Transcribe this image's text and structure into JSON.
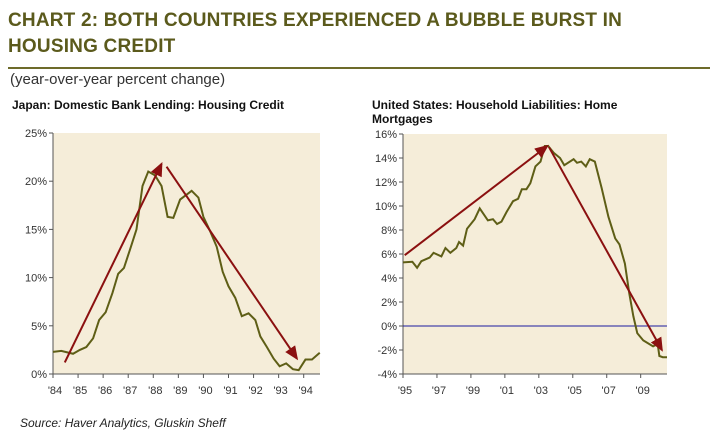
{
  "header": {
    "title": "CHART 2: BOTH COUNTRIES EXPERIENCED A BUBBLE BURST IN HOUSING CREDIT",
    "subtitle": "(year-over-year percent change)"
  },
  "source": "Source: Haver Analytics, Gluskin Sheff",
  "colors": {
    "line": "#5e5e16",
    "arrow": "#8b1010",
    "plot_bg": "#f5edd9",
    "zero_line": "#1a1aa0"
  },
  "chart_data": [
    {
      "type": "line",
      "title": "Japan: Domestic Bank Lending: Housing Credit",
      "ylim": [
        0,
        25
      ],
      "xlim": [
        1984,
        1994.65
      ],
      "yticks": [
        0,
        5,
        10,
        15,
        20,
        25
      ],
      "ytick_labels": [
        "0%",
        "5%",
        "10%",
        "15%",
        "20%",
        "25%"
      ],
      "xticks": [
        1984,
        1985,
        1986,
        1987,
        1988,
        1989,
        1990,
        1991,
        1992,
        1993,
        1994
      ],
      "xtick_labels": [
        "'84",
        "'85",
        "'86",
        "'87",
        "'88",
        "'89",
        "'90",
        "'91",
        "'92",
        "'93",
        "'94"
      ],
      "series": [
        {
          "name": "Housing Credit",
          "x": [
            1984,
            1984.33,
            1984.8,
            1985.07,
            1985.33,
            1985.6,
            1985.84,
            1986.1,
            1986.37,
            1986.6,
            1986.83,
            1987.07,
            1987.33,
            1987.57,
            1987.8,
            1988.07,
            1988.33,
            1988.57,
            1988.8,
            1989.07,
            1989.53,
            1989.8,
            1990,
            1990.27,
            1990.53,
            1990.77,
            1991,
            1991.27,
            1991.53,
            1991.8,
            1992.07,
            1992.27,
            1992.53,
            1992.8,
            1993.04,
            1993.3,
            1993.57,
            1993.8,
            1994.07,
            1994.33,
            1994.64
          ],
          "y": [
            2.3,
            2.4,
            2.1,
            2.5,
            2.8,
            3.7,
            5.6,
            6.4,
            8.4,
            10.4,
            11,
            12.9,
            15,
            19.5,
            21,
            20.6,
            19.5,
            16.3,
            16.2,
            18.1,
            19,
            18.3,
            16.3,
            14.8,
            13.2,
            10.6,
            9.1,
            7.9,
            6,
            6.3,
            5.6,
            3.9,
            2.8,
            1.6,
            0.8,
            1.1,
            0.5,
            0.4,
            1.5,
            1.5,
            2.2
          ]
        }
      ],
      "arrows": [
        {
          "from": [
            1984.47,
            1.2
          ],
          "to": [
            1988.33,
            21.8
          ]
        },
        {
          "from": [
            1988.53,
            21.5
          ],
          "to": [
            1993.73,
            1.6
          ]
        }
      ]
    },
    {
      "type": "line",
      "title": "United States: Household Liabilities: Home Mortgages",
      "ylim": [
        -4,
        16
      ],
      "xlim": [
        1995,
        2010.55
      ],
      "yticks": [
        -4,
        -2,
        0,
        2,
        4,
        6,
        8,
        10,
        12,
        14,
        16
      ],
      "ytick_labels": [
        "-4%",
        "-2%",
        "0%",
        "2%",
        "4%",
        "6%",
        "8%",
        "10%",
        "12%",
        "14%",
        "16%"
      ],
      "xticks": [
        1995,
        1997,
        1999,
        2001,
        2003,
        2005,
        2007,
        2009
      ],
      "xtick_labels": [
        "'95",
        "'97",
        "'99",
        "'01",
        "'03",
        "'05",
        "'07",
        "'09"
      ],
      "series": [
        {
          "name": "Home Mortgages",
          "x": [
            1995,
            1995.55,
            1995.83,
            1996.08,
            1996.57,
            1996.8,
            1997.26,
            1997.5,
            1997.79,
            1998.14,
            1998.3,
            1998.54,
            1998.77,
            1999.22,
            1999.52,
            2000,
            2000.3,
            2000.54,
            2000.8,
            2001.1,
            2001.48,
            2001.78,
            2002,
            2002.27,
            2002.5,
            2002.8,
            2003.1,
            2003.35,
            2003.55,
            2003.9,
            2004.25,
            2004.5,
            2005.05,
            2005.25,
            2005.5,
            2005.77,
            2006,
            2006.3,
            2006.7,
            2007.1,
            2007.5,
            2007.75,
            2008.07,
            2008.33,
            2008.57,
            2008.8,
            2009.15,
            2009.73,
            2010,
            2010.1,
            2010.3,
            2010.55
          ],
          "y": [
            5.3,
            5.35,
            4.85,
            5.4,
            5.7,
            6.1,
            5.8,
            6.5,
            6.1,
            6.5,
            7.0,
            6.7,
            8.1,
            8.9,
            9.8,
            8.8,
            8.9,
            8.5,
            8.7,
            9.5,
            10.4,
            10.6,
            11.4,
            11.4,
            11.9,
            13.3,
            13.7,
            15,
            15.0,
            14.4,
            14,
            13.4,
            13.9,
            13.6,
            13.7,
            13.3,
            13.9,
            13.7,
            11.5,
            9.1,
            7.3,
            6.8,
            5.2,
            2.7,
            0.8,
            -0.6,
            -1.2,
            -1.7,
            -1.5,
            -2.5,
            -2.6,
            -2.6
          ]
        }
      ],
      "reference_line": 0,
      "arrows": [
        {
          "from": [
            1995.1,
            5.9
          ],
          "to": [
            2003.5,
            15.0
          ]
        },
        {
          "from": [
            2003.6,
            14.9
          ],
          "to": [
            2010.25,
            -2.0
          ]
        }
      ]
    }
  ]
}
